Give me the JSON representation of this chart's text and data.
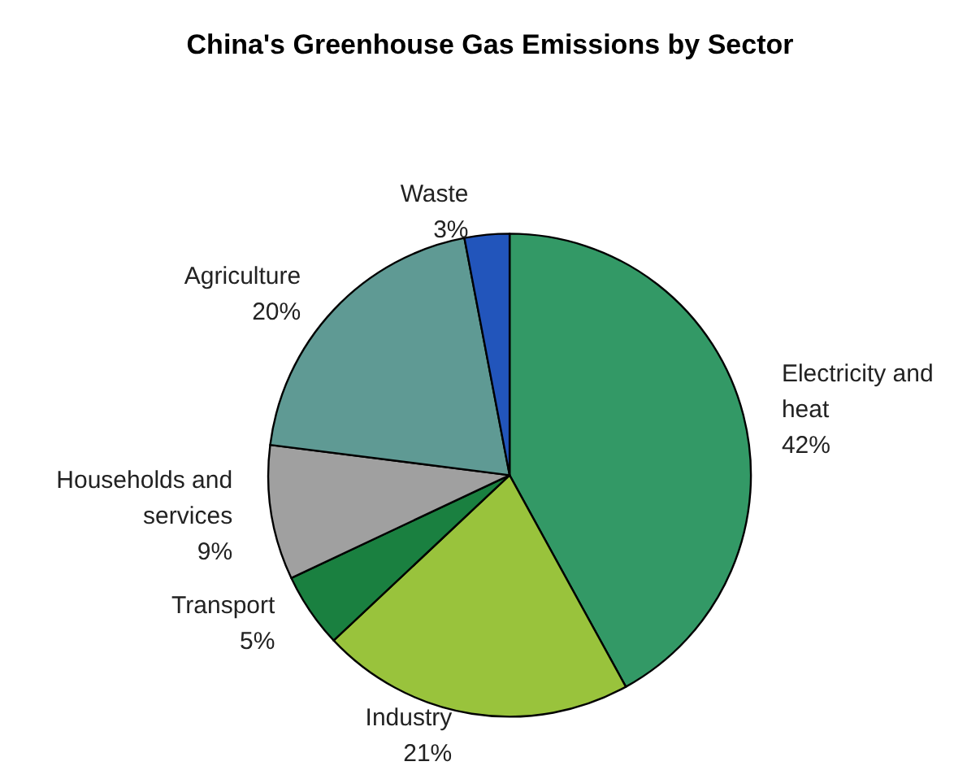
{
  "chart_data": {
    "type": "pie",
    "title": "China's Greenhouse Gas Emissions by Sector",
    "categories": [
      "Electricity and heat",
      "Industry",
      "Transport",
      "Households and services",
      "Agriculture",
      "Waste"
    ],
    "values": [
      42,
      21,
      5,
      9,
      20,
      3
    ],
    "value_labels": [
      "42%",
      "21%",
      "5%",
      "9%",
      "20%",
      "3%"
    ],
    "colors": [
      "#339966",
      "#99c33c",
      "#1a8040",
      "#a0a0a0",
      "#5f9a94",
      "#2255bb"
    ],
    "legend": false
  }
}
